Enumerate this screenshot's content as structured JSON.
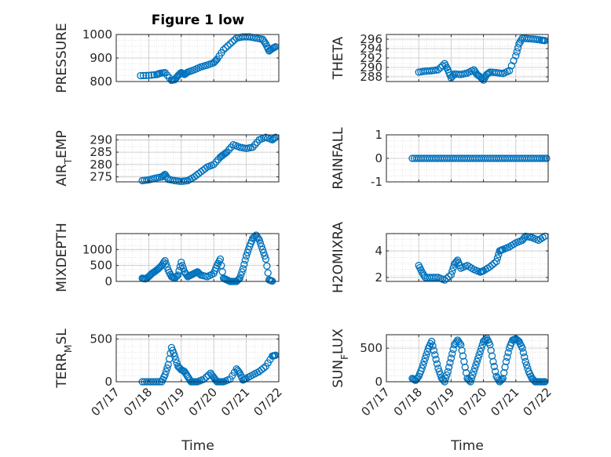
{
  "figure_title": "Figure 1 low",
  "xlabel": "Time",
  "date_ticks": [
    "07/17",
    "07/18",
    "07/19",
    "07/20",
    "07/21",
    "07/22"
  ],
  "colors": {
    "marker": "#0072BD",
    "axis": "#262626",
    "grid": "#d9d9d9"
  },
  "chart_data": [
    {
      "type": "scatter",
      "ylabel": "PRESSURE",
      "ylim": [
        800,
        1000
      ],
      "yticks": [
        "800",
        "900",
        "1000"
      ],
      "xlim": [
        "07/17",
        "07/22"
      ],
      "grid": true,
      "x": [
        17.75,
        18.0,
        18.25,
        18.35,
        18.5,
        18.7,
        18.8,
        18.9,
        19.0,
        19.1,
        19.2,
        19.4,
        19.6,
        19.8,
        20.0,
        20.1,
        20.3,
        20.5,
        20.7,
        20.9,
        21.1,
        21.3,
        21.5,
        21.6,
        21.7,
        21.8,
        21.9
      ],
      "y": [
        825,
        826,
        830,
        835,
        838,
        805,
        808,
        825,
        838,
        830,
        840,
        850,
        862,
        870,
        880,
        895,
        935,
        960,
        985,
        990,
        990,
        985,
        980,
        960,
        930,
        940,
        948
      ]
    },
    {
      "type": "scatter",
      "ylabel": "THETA",
      "ylim": [
        287,
        297
      ],
      "yticks": [
        "288",
        "290",
        "292",
        "294",
        "296"
      ],
      "xlim": [
        "07/17",
        "07/22"
      ],
      "grid": true,
      "x": [
        18.0,
        18.2,
        18.4,
        18.6,
        18.8,
        18.9,
        19.0,
        19.1,
        19.3,
        19.5,
        19.7,
        19.8,
        19.9,
        20.0,
        20.1,
        20.2,
        20.4,
        20.6,
        20.8,
        21.0,
        21.1,
        21.2,
        21.4,
        21.6,
        21.8,
        21.9
      ],
      "y": [
        289,
        289.2,
        289.3,
        289.5,
        290.8,
        289.5,
        287.8,
        288.6,
        288.5,
        288.8,
        289.5,
        288.5,
        288,
        287.3,
        288.5,
        289,
        288.9,
        288.7,
        289.3,
        292.5,
        295,
        296.2,
        296.1,
        296,
        295.8,
        295.7
      ]
    },
    {
      "type": "scatter",
      "ylabel": "AIR_TEMP",
      "ylim": [
        273,
        292
      ],
      "yticks": [
        "275",
        "280",
        "285",
        "290"
      ],
      "xlim": [
        "07/17",
        "07/22"
      ],
      "grid": true,
      "x": [
        17.8,
        18.0,
        18.2,
        18.4,
        18.5,
        18.6,
        18.8,
        19.0,
        19.2,
        19.4,
        19.6,
        19.8,
        20.0,
        20.2,
        20.3,
        20.4,
        20.6,
        20.8,
        21.0,
        21.2,
        21.4,
        21.6,
        21.8,
        21.9
      ],
      "y": [
        273.5,
        273.8,
        274.5,
        275,
        276,
        274,
        273.5,
        273.2,
        273.5,
        275,
        277,
        279,
        280,
        283,
        284,
        285,
        288,
        287,
        286.5,
        287,
        290,
        291,
        290,
        291
      ]
    },
    {
      "type": "scatter",
      "ylabel": "RAINFALL",
      "ylim": [
        -1,
        1
      ],
      "yticks": [
        "-1",
        "0",
        "1"
      ],
      "xlim": [
        "07/17",
        "07/22"
      ],
      "grid": true,
      "x": [
        17.8,
        18.0,
        18.2,
        18.4,
        18.6,
        18.8,
        19.0,
        19.2,
        19.4,
        19.6,
        19.8,
        20.0,
        20.2,
        20.4,
        20.6,
        20.8,
        21.0,
        21.2,
        21.4,
        21.6,
        21.8,
        21.95
      ],
      "y": [
        0,
        0,
        0,
        0,
        0,
        0,
        0,
        0,
        0,
        0,
        0,
        0,
        0,
        0,
        0,
        0,
        0,
        0,
        0,
        0,
        0,
        0
      ]
    },
    {
      "type": "scatter",
      "ylabel": "MIXDEPTH",
      "ylim": [
        0,
        1500
      ],
      "yticks": [
        "0",
        "500",
        "1000"
      ],
      "xlim": [
        "07/17",
        "07/22"
      ],
      "grid": true,
      "x": [
        17.8,
        17.9,
        18.0,
        18.1,
        18.2,
        18.3,
        18.4,
        18.5,
        18.6,
        18.7,
        18.8,
        18.9,
        19.0,
        19.1,
        19.2,
        19.3,
        19.4,
        19.5,
        19.6,
        19.8,
        20.0,
        20.1,
        20.2,
        20.3,
        20.4,
        20.5,
        20.6,
        20.7,
        20.8,
        20.9,
        21.0,
        21.1,
        21.2,
        21.3,
        21.4,
        21.5,
        21.6,
        21.7,
        21.8
      ],
      "y": [
        100,
        80,
        150,
        250,
        320,
        400,
        500,
        650,
        350,
        150,
        100,
        200,
        600,
        300,
        150,
        200,
        250,
        300,
        200,
        150,
        250,
        500,
        700,
        100,
        50,
        0,
        0,
        0,
        100,
        400,
        800,
        1100,
        1350,
        1450,
        1300,
        1000,
        700,
        50,
        10
      ]
    },
    {
      "type": "scatter",
      "ylabel": "H2OMIXRA",
      "ylim": [
        1.7,
        5.3
      ],
      "yticks": [
        "2",
        "4"
      ],
      "xlim": [
        "07/17",
        "07/22"
      ],
      "grid": true,
      "x": [
        18.0,
        18.1,
        18.2,
        18.4,
        18.6,
        18.8,
        19.0,
        19.1,
        19.2,
        19.3,
        19.5,
        19.7,
        19.9,
        20.0,
        20.2,
        20.4,
        20.5,
        20.6,
        20.8,
        21.0,
        21.2,
        21.3,
        21.5,
        21.7,
        21.9
      ],
      "y": [
        2.9,
        2.4,
        2.0,
        2.0,
        2.0,
        1.8,
        2.2,
        3.0,
        3.3,
        2.7,
        2.9,
        2.6,
        2.4,
        2.5,
        2.8,
        3.2,
        4.0,
        4.1,
        4.3,
        4.6,
        4.8,
        5.1,
        5.0,
        4.8,
        5.1
      ]
    },
    {
      "type": "scatter",
      "ylabel": "TERR_MSL",
      "ylim": [
        0,
        550
      ],
      "yticks": [
        "0",
        "500"
      ],
      "xlim": [
        "07/17",
        "07/22"
      ],
      "grid": true,
      "x": [
        17.8,
        18.0,
        18.2,
        18.4,
        18.5,
        18.6,
        18.7,
        18.8,
        18.9,
        19.0,
        19.1,
        19.2,
        19.3,
        19.4,
        19.5,
        19.7,
        19.9,
        20.0,
        20.1,
        20.2,
        20.3,
        20.5,
        20.7,
        20.8,
        20.9,
        21.0,
        21.2,
        21.4,
        21.6,
        21.8,
        21.9
      ],
      "y": [
        0,
        0,
        0,
        0,
        80,
        200,
        400,
        300,
        180,
        140,
        120,
        60,
        0,
        0,
        0,
        30,
        100,
        50,
        0,
        0,
        0,
        30,
        150,
        100,
        20,
        40,
        80,
        120,
        180,
        300,
        310
      ]
    },
    {
      "type": "scatter",
      "ylabel": "SUN_FLUX",
      "ylim": [
        0,
        700
      ],
      "yticks": [
        "0",
        "500"
      ],
      "xlim": [
        "07/17",
        "07/22"
      ],
      "grid": true,
      "x": [
        17.8,
        17.9,
        18.0,
        18.1,
        18.2,
        18.3,
        18.4,
        18.5,
        18.6,
        18.7,
        18.8,
        18.9,
        19.0,
        19.1,
        19.2,
        19.3,
        19.4,
        19.5,
        19.6,
        19.7,
        19.8,
        19.9,
        20.0,
        20.1,
        20.2,
        20.3,
        20.4,
        20.5,
        20.6,
        20.7,
        20.8,
        20.9,
        21.0,
        21.1,
        21.2,
        21.3,
        21.4,
        21.5,
        21.6,
        21.7,
        21.8,
        21.9
      ],
      "y": [
        50,
        20,
        80,
        200,
        350,
        500,
        600,
        400,
        200,
        60,
        0,
        150,
        350,
        550,
        620,
        550,
        300,
        50,
        0,
        150,
        300,
        450,
        600,
        650,
        550,
        300,
        80,
        0,
        50,
        300,
        500,
        620,
        640,
        600,
        500,
        300,
        150,
        50,
        0,
        0,
        0,
        0
      ]
    }
  ]
}
